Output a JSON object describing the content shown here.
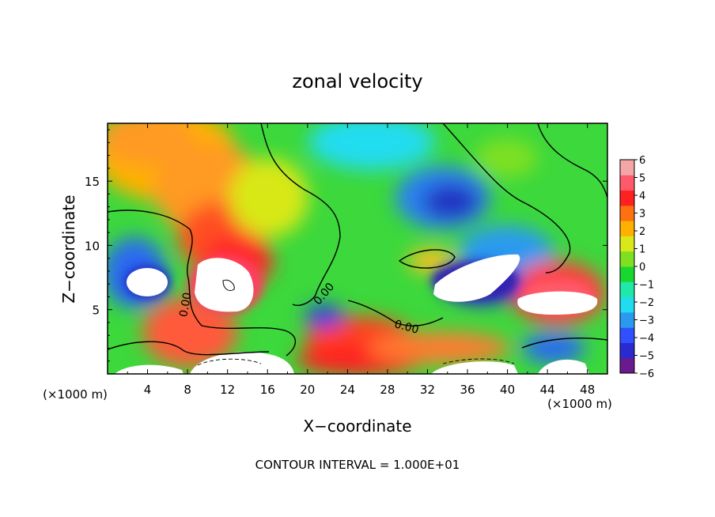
{
  "chart_data": {
    "type": "heatmap",
    "title": "zonal velocity",
    "xlabel": "X−coordinate",
    "ylabel": "Z−coordinate",
    "x_unit_left": "(×1000 m)",
    "x_unit_right": "(×1000 m)",
    "footer": "CONTOUR INTERVAL = 1.000E+01",
    "xlim": [
      0,
      50
    ],
    "ylim": [
      0,
      19.5
    ],
    "x_ticks": [
      "4",
      "8",
      "12",
      "16",
      "20",
      "24",
      "28",
      "32",
      "36",
      "40",
      "44",
      "48"
    ],
    "y_ticks": [
      "5",
      "10",
      "15"
    ],
    "contour_label": "0.00",
    "colorbar": {
      "range": [
        -6,
        6
      ],
      "labels": [
        "6",
        "5",
        "4",
        "3",
        "2",
        "1",
        "0",
        "−1",
        "−2",
        "−3",
        "−4",
        "−5",
        "−6"
      ],
      "colors": [
        "#6a1a8e",
        "#2a2ad0",
        "#3050ff",
        "#2a9af0",
        "#20dcf0",
        "#20e8a8",
        "#18d830",
        "#7ee020",
        "#d8e818",
        "#ffb000",
        "#ff7010",
        "#ff2020",
        "#ff5a6a",
        "#f2a6a6"
      ]
    }
  }
}
